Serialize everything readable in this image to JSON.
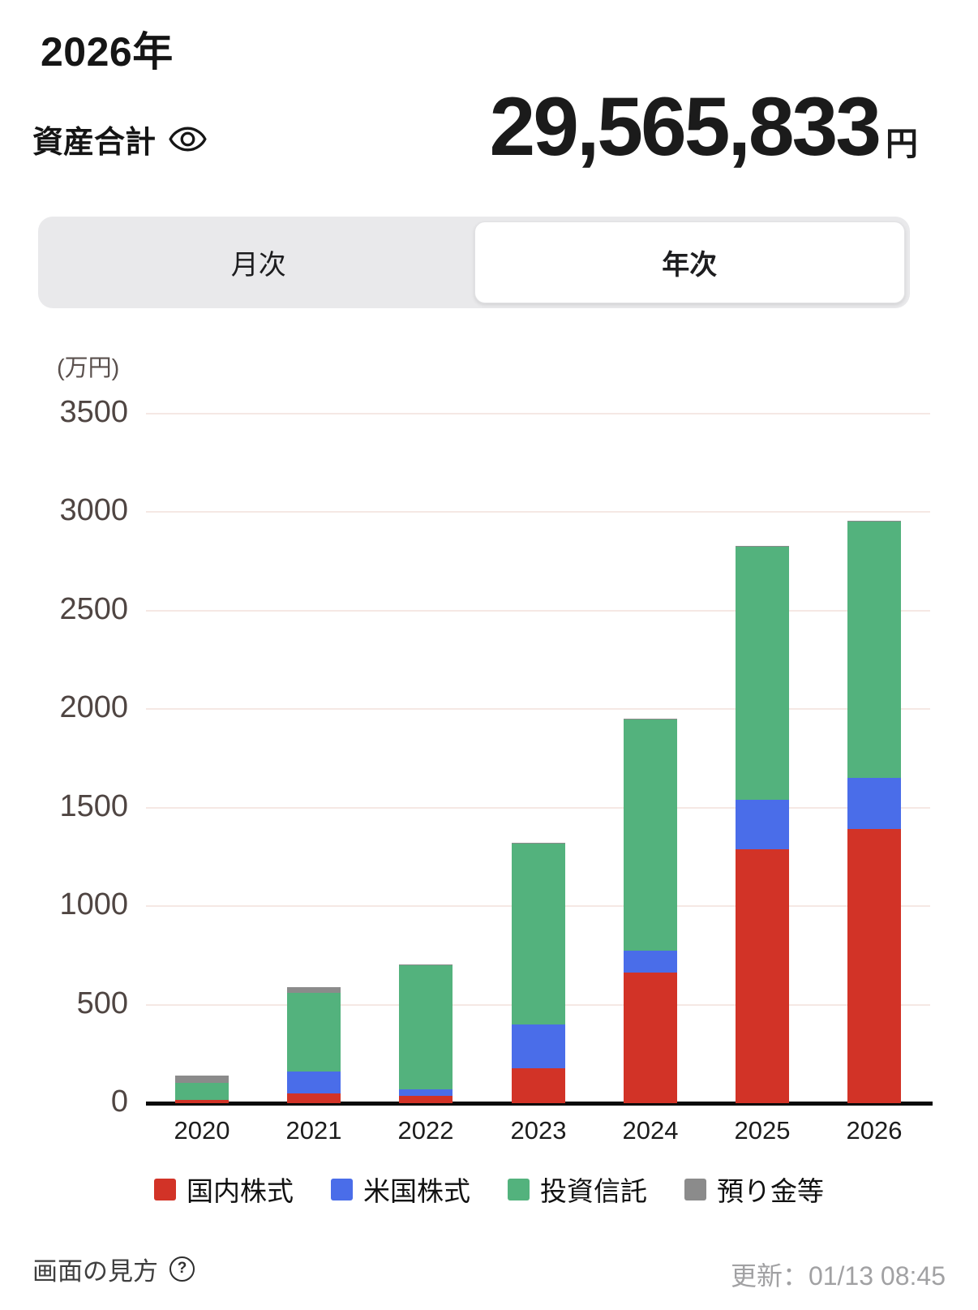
{
  "header": {
    "year_title": "2026年",
    "assets_label": "資産合計",
    "total_value": "29,565,833",
    "total_unit": "円"
  },
  "tabs": {
    "monthly_label": "月次",
    "yearly_label": "年次",
    "selected": "yearly"
  },
  "chart_data": {
    "type": "bar",
    "stacked": true,
    "unit_label": "(万円)",
    "categories": [
      "2020",
      "2021",
      "2022",
      "2023",
      "2024",
      "2025",
      "2026"
    ],
    "series": [
      {
        "name": "国内株式",
        "color": "#d23327",
        "values": [
          18,
          49,
          38,
          178,
          665,
          1287,
          1390
        ]
      },
      {
        "name": "米国株式",
        "color": "#4a6de9",
        "values": [
          0,
          110,
          31,
          221,
          110,
          251,
          260
        ]
      },
      {
        "name": "投資信託",
        "color": "#53b27d",
        "values": [
          86,
          401,
          631,
          917,
          1172,
          1287,
          1301
        ]
      },
      {
        "name": "預り金等",
        "color": "#8b8b8b",
        "values": [
          37,
          29,
          5,
          5,
          5,
          5,
          6
        ]
      }
    ],
    "totals": [
      141,
      589,
      705,
      1321,
      1952,
      2830,
      2957
    ],
    "ylim": [
      0,
      3500
    ],
    "yticks": [
      0,
      500,
      1000,
      1500,
      2000,
      2500,
      3000,
      3500
    ],
    "grid": true,
    "legend_position": "bottom"
  },
  "icons": {
    "help_glyph": "?"
  },
  "footer": {
    "help_label": "画面の見方",
    "updated_label": "更新：01/13 08:45"
  }
}
